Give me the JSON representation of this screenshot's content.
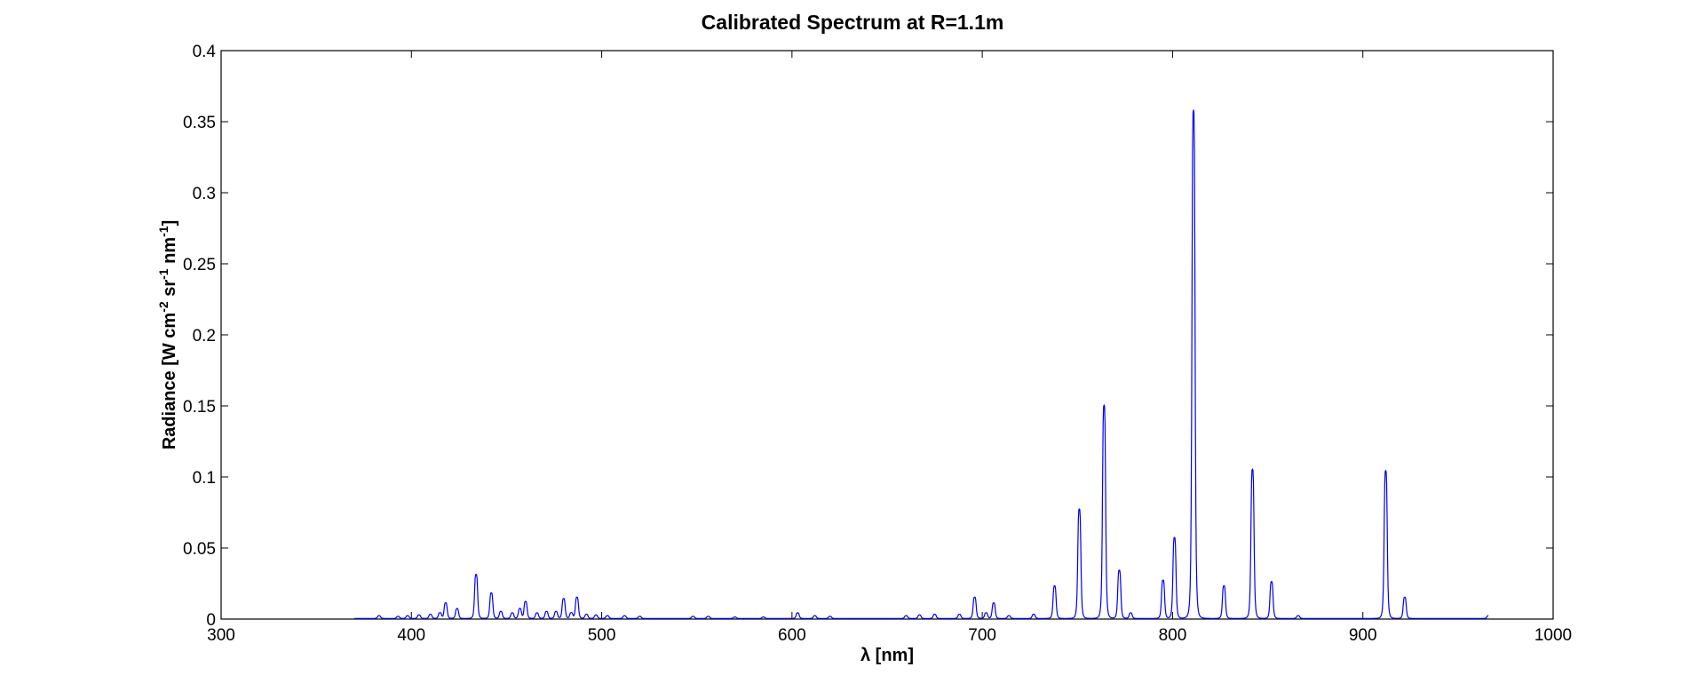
{
  "chart_data": {
    "type": "line",
    "title": "Calibrated Spectrum at R=1.1m",
    "xlabel": "λ [nm]",
    "ylabel": {
      "p1": "Radiance [W cm",
      "s1": "-2",
      "p2": " sr",
      "s2": "-1",
      "p3": " nm",
      "s3": "-1",
      "p4": "]"
    },
    "xlim": [
      300,
      1000
    ],
    "ylim": [
      0,
      0.4
    ],
    "x_ticks": [
      "300",
      "400",
      "500",
      "600",
      "700",
      "800",
      "900",
      "1000"
    ],
    "y_ticks": [
      "0",
      "0.05",
      "0.1",
      "0.15",
      "0.2",
      "0.25",
      "0.3",
      "0.35",
      "0.4"
    ],
    "grid": false,
    "color": "#0000ff",
    "x_range": [
      370,
      966
    ],
    "peaks": [
      [
        383,
        0.002
      ],
      [
        393,
        0.0015
      ],
      [
        398,
        0.002
      ],
      [
        404,
        0.0025
      ],
      [
        410,
        0.003
      ],
      [
        415,
        0.004
      ],
      [
        418,
        0.011
      ],
      [
        424,
        0.007
      ],
      [
        434,
        0.031
      ],
      [
        442,
        0.018
      ],
      [
        447,
        0.005
      ],
      [
        453,
        0.004
      ],
      [
        457,
        0.007
      ],
      [
        460,
        0.012
      ],
      [
        466,
        0.004
      ],
      [
        471,
        0.005
      ],
      [
        476,
        0.005
      ],
      [
        480,
        0.014
      ],
      [
        484,
        0.004
      ],
      [
        487,
        0.015
      ],
      [
        492,
        0.003
      ],
      [
        497,
        0.0025
      ],
      [
        503,
        0.002
      ],
      [
        512,
        0.002
      ],
      [
        520,
        0.0015
      ],
      [
        548,
        0.0015
      ],
      [
        556,
        0.0015
      ],
      [
        570,
        0.001
      ],
      [
        585,
        0.001
      ],
      [
        603,
        0.004
      ],
      [
        612,
        0.002
      ],
      [
        620,
        0.0015
      ],
      [
        660,
        0.002
      ],
      [
        667,
        0.0025
      ],
      [
        675,
        0.003
      ],
      [
        688,
        0.003
      ],
      [
        696,
        0.015
      ],
      [
        702,
        0.004
      ],
      [
        706,
        0.011
      ],
      [
        714,
        0.002
      ],
      [
        727,
        0.003
      ],
      [
        738,
        0.023
      ],
      [
        751,
        0.077
      ],
      [
        764,
        0.15
      ],
      [
        772,
        0.034
      ],
      [
        778,
        0.004
      ],
      [
        795,
        0.027
      ],
      [
        801,
        0.057
      ],
      [
        811,
        0.358
      ],
      [
        827,
        0.023
      ],
      [
        842,
        0.105
      ],
      [
        852,
        0.026
      ],
      [
        866,
        0.002
      ],
      [
        912,
        0.104
      ],
      [
        922,
        0.015
      ],
      [
        966,
        0.002
      ]
    ]
  }
}
